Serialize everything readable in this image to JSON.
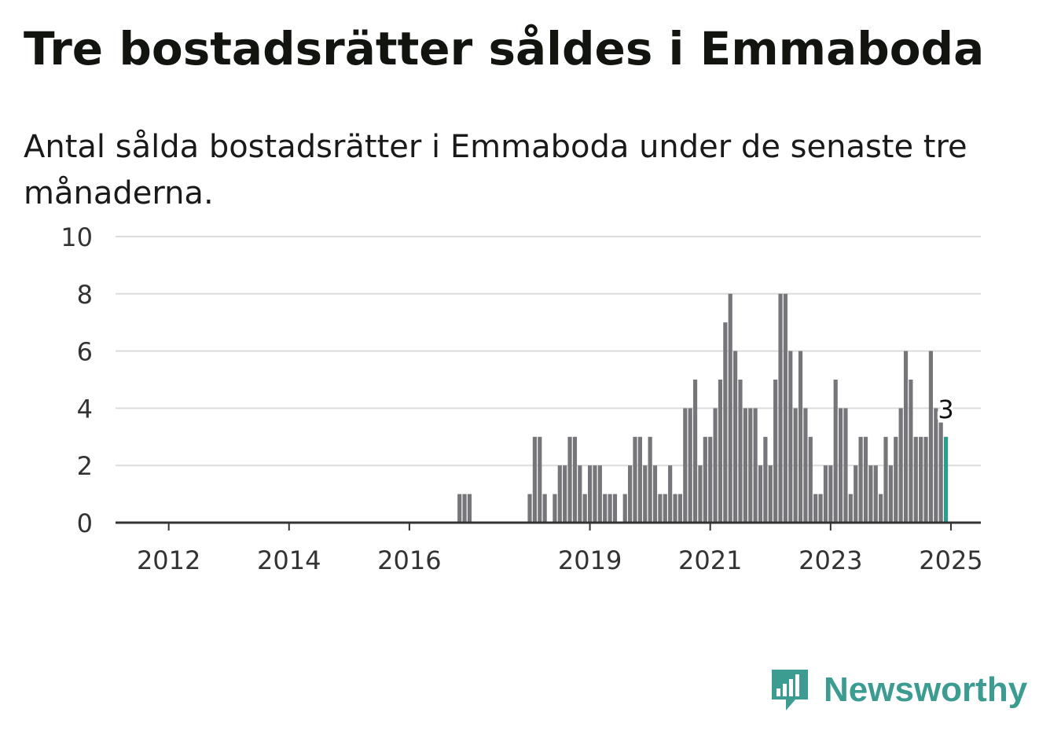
{
  "header": {
    "title": "Tre bostadsrätter såldes i Emmaboda",
    "subtitle": "Antal sålda bostadsrätter i Emmaboda under de senaste tre månaderna."
  },
  "brand": {
    "name": "Newsworthy",
    "color": "#3d9c92"
  },
  "chart_data": {
    "type": "bar",
    "title": "",
    "xlabel": "",
    "ylabel": "",
    "ylim": [
      0,
      10
    ],
    "y_ticks": [
      "0",
      "2",
      "4",
      "6",
      "8",
      "10"
    ],
    "x_ticks": [
      {
        "label": "2012",
        "date": "2012-01"
      },
      {
        "label": "2014",
        "date": "2014-01"
      },
      {
        "label": "2016",
        "date": "2016-01"
      },
      {
        "label": "2019",
        "date": "2019-01"
      },
      {
        "label": "2021",
        "date": "2021-01"
      },
      {
        "label": "2023",
        "date": "2023-01"
      },
      {
        "label": "2025",
        "date": "2025-01"
      }
    ],
    "grid": true,
    "bar_color": "#76767a",
    "highlight_color": "#2a9d8f",
    "highlight_label": "3",
    "start_month": "2011-06",
    "values": [
      0,
      0,
      0,
      0,
      0,
      0,
      0,
      0,
      0,
      0,
      0,
      0,
      0,
      0,
      0,
      0,
      0,
      0,
      0,
      0,
      0,
      0,
      0,
      0,
      0,
      0,
      0,
      0,
      0,
      0,
      0,
      0,
      0,
      0,
      0,
      0,
      0,
      0,
      0,
      0,
      0,
      0,
      0,
      0,
      0,
      0,
      0,
      0,
      0,
      0,
      0,
      0,
      0,
      0,
      0,
      0,
      0,
      0,
      0,
      0,
      0,
      0,
      0,
      0,
      0,
      1,
      1,
      1,
      0,
      0,
      0,
      0,
      0,
      0,
      0,
      0,
      0,
      0,
      0,
      1,
      3,
      3,
      1,
      0,
      1,
      2,
      2,
      3,
      3,
      2,
      1,
      2,
      2,
      2,
      1,
      1,
      1,
      0,
      1,
      2,
      3,
      3,
      2,
      3,
      2,
      1,
      1,
      2,
      1,
      1,
      4,
      4,
      5,
      2,
      3,
      3,
      4,
      5,
      7,
      8,
      6,
      5,
      4,
      4,
      4,
      2,
      3,
      2,
      5,
      8,
      8,
      6,
      4,
      6,
      4,
      3,
      1,
      1,
      2,
      2,
      5,
      4,
      4,
      1,
      2,
      3,
      3,
      2,
      2,
      1,
      3,
      2,
      3,
      4,
      6,
      5,
      3,
      3,
      3,
      6,
      4,
      3.5,
      3
    ]
  }
}
